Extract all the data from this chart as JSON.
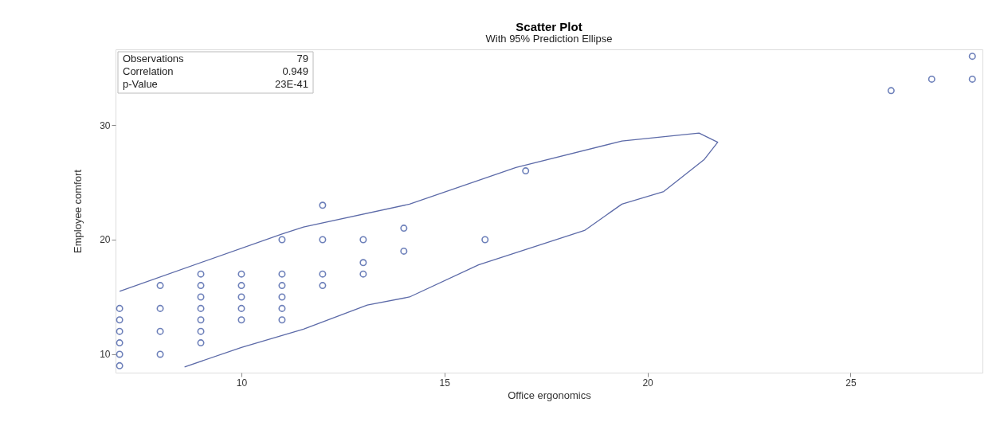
{
  "chart_data": {
    "type": "scatter",
    "title": "Scatter Plot",
    "subtitle": "With 95% Prediction Ellipse",
    "xlabel": "Office ergonomics",
    "ylabel": "Employee comfort",
    "annotations": [
      "Observations",
      "79",
      "Correlation",
      "0.949",
      "p-Value",
      "23E-41"
    ],
    "series": [
      {
        "type": "scatter",
        "color": "#2f4a9c",
        "marker": "circle",
        "x": [
          7,
          7,
          7,
          7,
          7,
          7,
          8,
          8,
          8,
          8,
          9,
          9,
          9,
          9,
          9,
          9,
          9,
          10,
          10,
          10,
          10,
          10,
          11,
          11,
          11,
          11,
          11,
          11,
          12,
          12,
          12,
          12,
          13,
          13,
          13,
          14,
          14,
          16,
          17,
          26,
          27,
          28,
          28
        ],
        "values": [
          9,
          10,
          11,
          12,
          13,
          14,
          10,
          12,
          14,
          16,
          11,
          12,
          13,
          14,
          15,
          16,
          17,
          13,
          14,
          15,
          16,
          17,
          13,
          14,
          15,
          16,
          17,
          20,
          16,
          17,
          20,
          23,
          17,
          18,
          20,
          19,
          21,
          20,
          26,
          33,
          34,
          34,
          36
        ]
      },
      {
        "type": "line",
        "color": "#5c6aa8",
        "marker": "none",
        "line_style": "solid",
        "x": [
          8.6,
          10.0,
          11.53,
          13.1,
          14.14,
          15.84,
          18.45,
          19.37,
          20.4,
          21.4,
          21.73,
          21.27,
          19.37,
          16.76,
          14.14,
          11.53,
          11.0,
          7.0
        ],
        "values": [
          8.9,
          10.6,
          12.2,
          14.3,
          15.0,
          17.8,
          20.8,
          23.1,
          24.2,
          27.0,
          28.5,
          29.3,
          28.6,
          26.3,
          23.1,
          21.1,
          20.5,
          15.5
        ]
      }
    ],
    "xlim": [
      6.9,
      28.25
    ],
    "ylim": [
      8.4,
      36.6
    ],
    "xticks": [
      10,
      15,
      20,
      25
    ],
    "yticks": [
      10,
      20,
      30
    ],
    "grid": false
  }
}
